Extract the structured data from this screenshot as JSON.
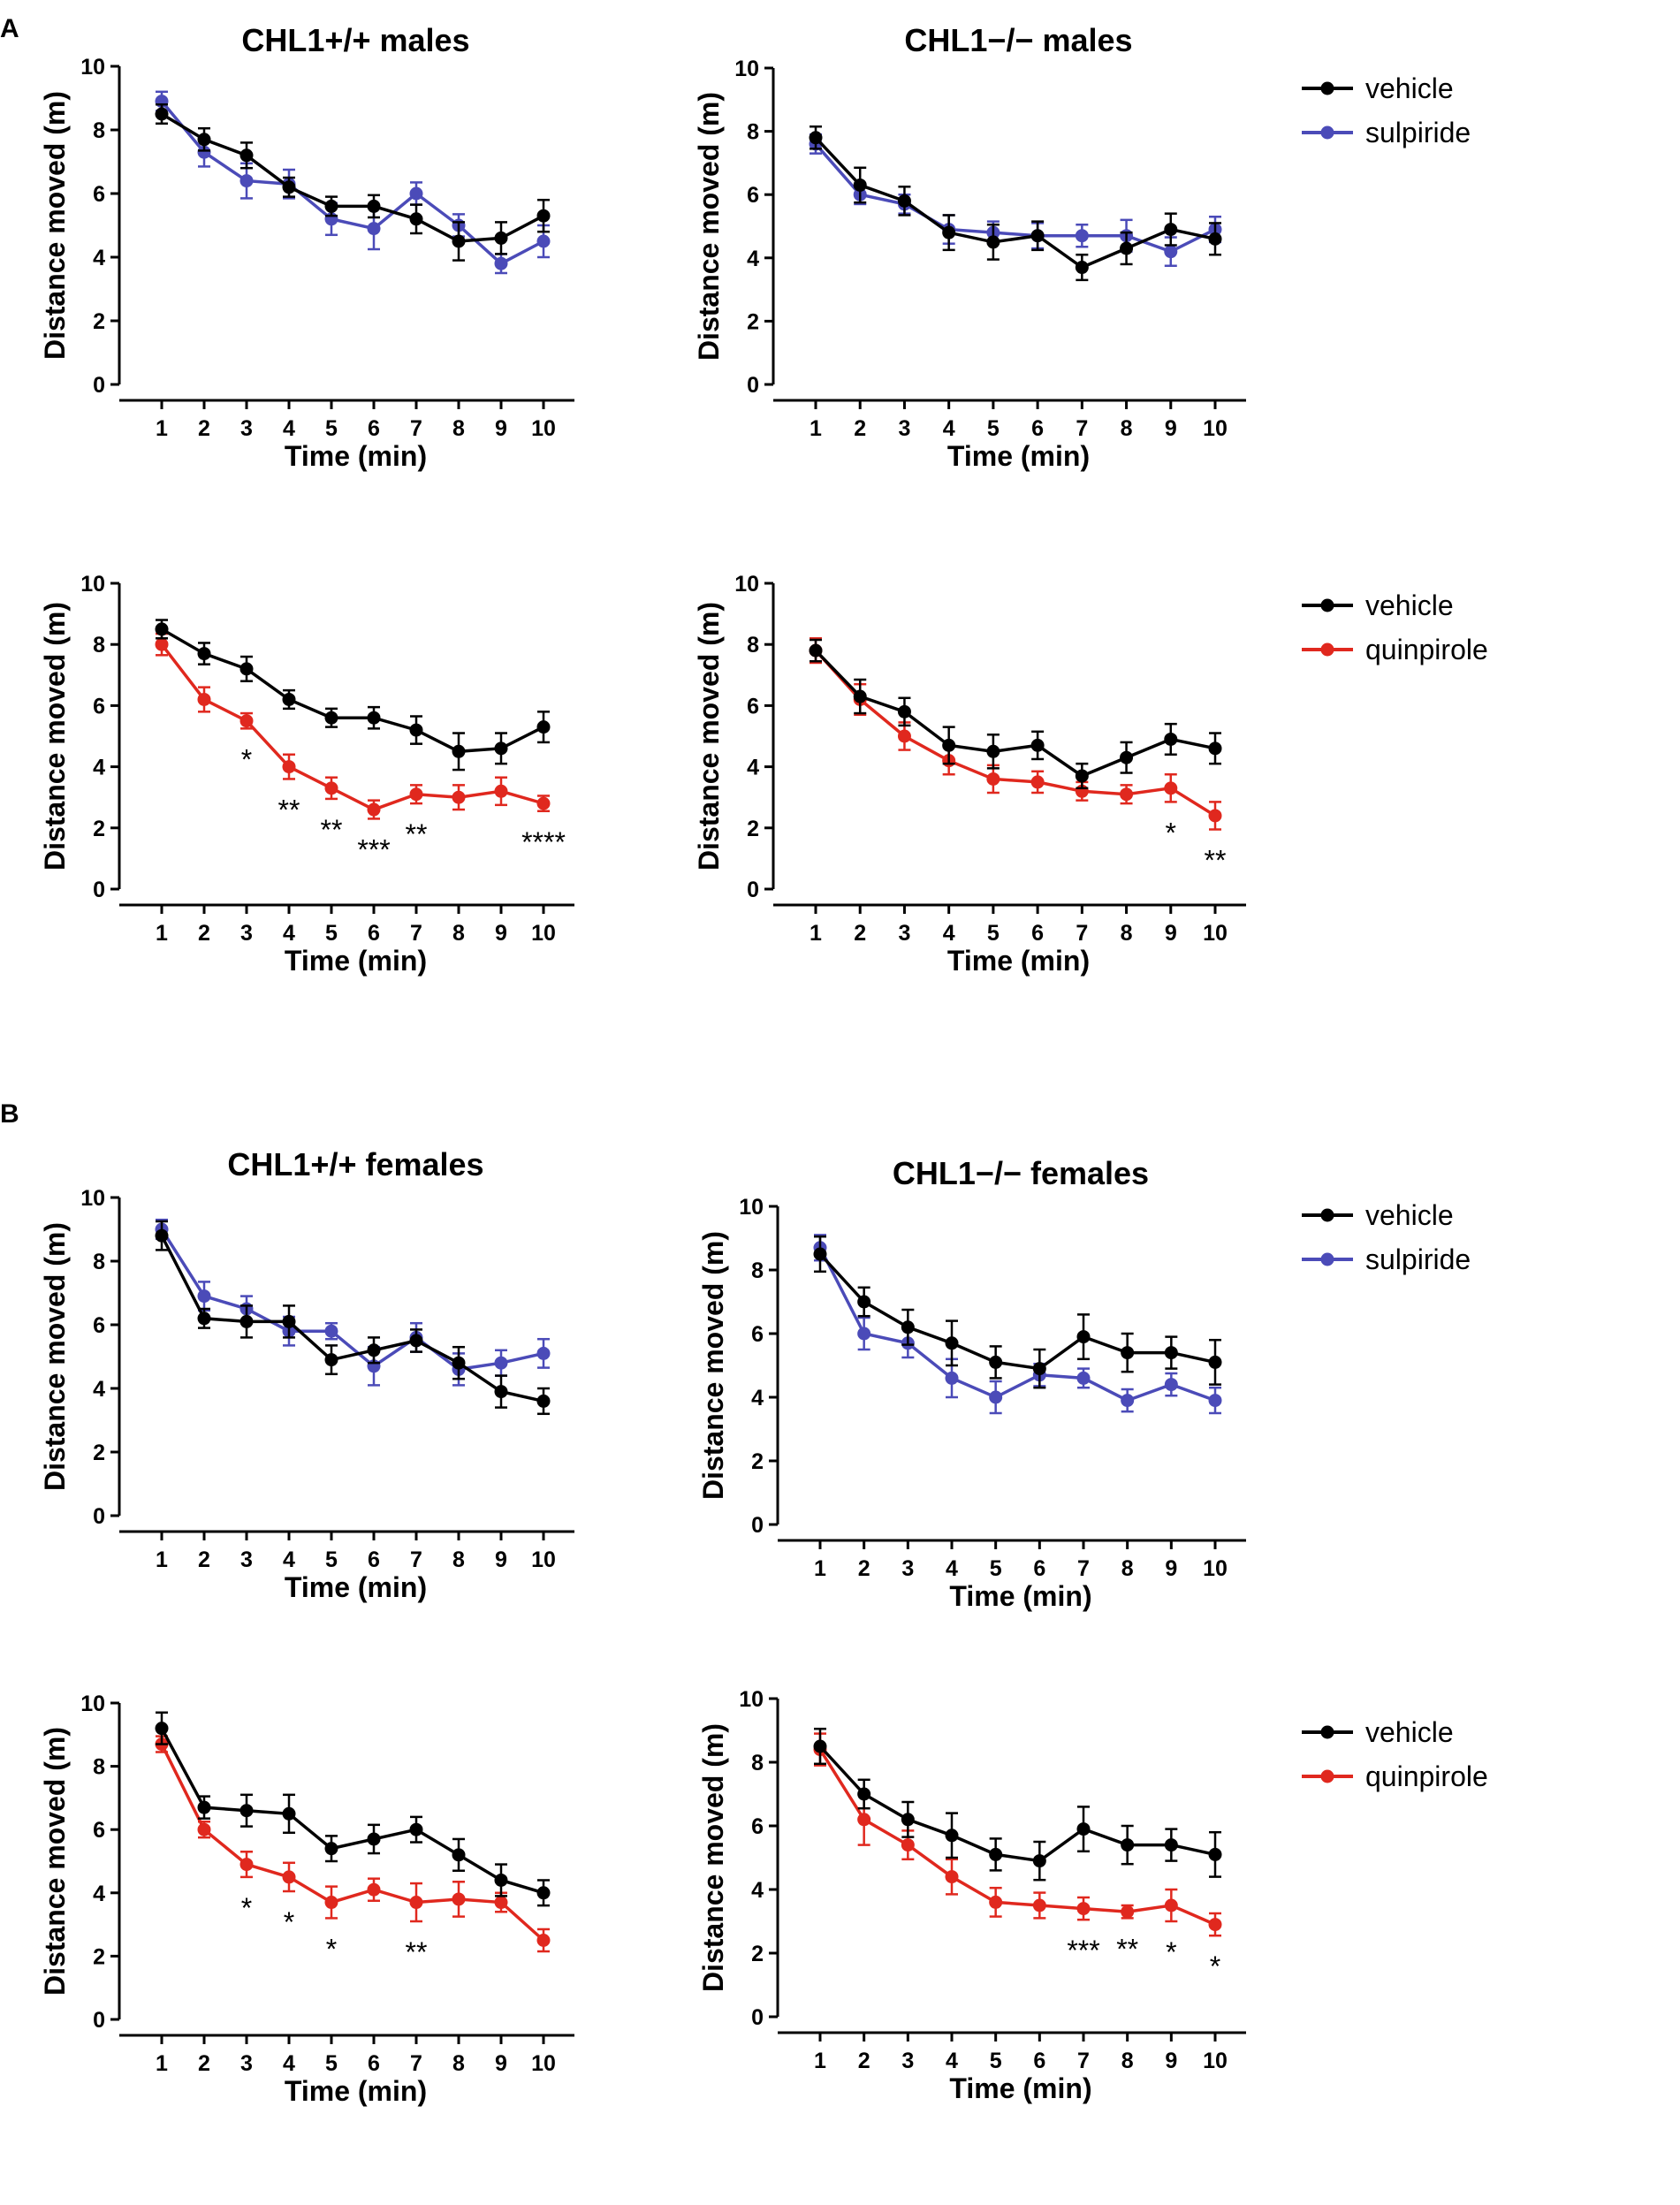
{
  "figure": {
    "panel_labels": [
      "A",
      "B"
    ]
  },
  "colors": {
    "vehicle": "#000000",
    "sulpiride": "#4B4BB8",
    "quinpirole": "#E0281E"
  },
  "chart_data": [
    {
      "id": "males-wt-sulpiride",
      "type": "line",
      "panel": "A",
      "title": "CHL1+/+ males",
      "xlabel": "Time (min)",
      "ylabel": "Distance moved  (m)",
      "categories": [
        1,
        2,
        3,
        4,
        5,
        6,
        7,
        8,
        9,
        10
      ],
      "ylim": [
        0,
        10
      ],
      "yticks": [
        0,
        2,
        4,
        6,
        8,
        10
      ],
      "series": [
        {
          "name": "vehicle",
          "color": "#000000",
          "values": [
            8.5,
            7.7,
            7.2,
            6.2,
            5.6,
            5.6,
            5.2,
            4.5,
            4.6,
            5.3
          ],
          "err": [
            0.3,
            0.35,
            0.4,
            0.3,
            0.3,
            0.35,
            0.45,
            0.6,
            0.5,
            0.5
          ]
        },
        {
          "name": "sulpiride",
          "color": "#4B4BB8",
          "values": [
            8.9,
            7.3,
            6.4,
            6.3,
            5.2,
            4.9,
            6.0,
            5.0,
            3.8,
            4.5
          ],
          "err": [
            0.3,
            0.45,
            0.55,
            0.45,
            0.5,
            0.65,
            0.35,
            0.35,
            0.3,
            0.5
          ]
        }
      ],
      "annotations": []
    },
    {
      "id": "males-ko-sulpiride",
      "type": "line",
      "panel": "A",
      "title": "CHL1−/− males",
      "xlabel": "Time (min)",
      "ylabel": "Distance moved  (m)",
      "categories": [
        1,
        2,
        3,
        4,
        5,
        6,
        7,
        8,
        9,
        10
      ],
      "ylim": [
        0,
        10
      ],
      "yticks": [
        0,
        2,
        4,
        6,
        8,
        10
      ],
      "legend": [
        "vehicle",
        "sulpiride"
      ],
      "series": [
        {
          "name": "vehicle",
          "color": "#000000",
          "values": [
            7.8,
            6.3,
            5.8,
            4.8,
            4.5,
            4.7,
            3.7,
            4.3,
            4.9,
            4.6
          ],
          "err": [
            0.35,
            0.55,
            0.45,
            0.55,
            0.55,
            0.45,
            0.4,
            0.5,
            0.5,
            0.5
          ]
        },
        {
          "name": "sulpiride",
          "color": "#4B4BB8",
          "values": [
            7.6,
            6.0,
            5.7,
            4.9,
            4.8,
            4.7,
            4.7,
            4.7,
            4.2,
            4.9
          ],
          "err": [
            0.3,
            0.3,
            0.3,
            0.45,
            0.35,
            0.4,
            0.35,
            0.5,
            0.45,
            0.4
          ]
        }
      ],
      "annotations": []
    },
    {
      "id": "males-wt-quinpirole",
      "type": "line",
      "panel": "A",
      "title": "",
      "xlabel": "Time (min)",
      "ylabel": "Distance moved  (m)",
      "categories": [
        1,
        2,
        3,
        4,
        5,
        6,
        7,
        8,
        9,
        10
      ],
      "ylim": [
        0,
        10
      ],
      "yticks": [
        0,
        2,
        4,
        6,
        8,
        10
      ],
      "series": [
        {
          "name": "vehicle",
          "color": "#000000",
          "values": [
            8.5,
            7.7,
            7.2,
            6.2,
            5.6,
            5.6,
            5.2,
            4.5,
            4.6,
            5.3
          ],
          "err": [
            0.3,
            0.35,
            0.4,
            0.3,
            0.3,
            0.35,
            0.45,
            0.6,
            0.5,
            0.5
          ]
        },
        {
          "name": "quinpirole",
          "color": "#E0281E",
          "values": [
            8.0,
            6.2,
            5.5,
            4.0,
            3.3,
            2.6,
            3.1,
            3.0,
            3.2,
            2.8
          ],
          "err": [
            0.35,
            0.4,
            0.25,
            0.4,
            0.35,
            0.3,
            0.3,
            0.4,
            0.45,
            0.25
          ]
        }
      ],
      "annotations": [
        {
          "x": 3,
          "text": "*"
        },
        {
          "x": 4,
          "text": "**"
        },
        {
          "x": 5,
          "text": "**"
        },
        {
          "x": 6,
          "text": "***"
        },
        {
          "x": 7,
          "text": "**"
        },
        {
          "x": 10,
          "text": "****"
        }
      ]
    },
    {
      "id": "males-ko-quinpirole",
      "type": "line",
      "panel": "A",
      "title": "",
      "xlabel": "Time (min)",
      "ylabel": "Distance moved  (m)",
      "categories": [
        1,
        2,
        3,
        4,
        5,
        6,
        7,
        8,
        9,
        10
      ],
      "ylim": [
        0,
        10
      ],
      "yticks": [
        0,
        2,
        4,
        6,
        8,
        10
      ],
      "legend": [
        "vehicle",
        "quinpirole"
      ],
      "series": [
        {
          "name": "vehicle",
          "color": "#000000",
          "values": [
            7.8,
            6.3,
            5.8,
            4.7,
            4.5,
            4.7,
            3.7,
            4.3,
            4.9,
            4.6
          ],
          "err": [
            0.35,
            0.55,
            0.45,
            0.6,
            0.55,
            0.45,
            0.4,
            0.5,
            0.5,
            0.5
          ]
        },
        {
          "name": "quinpirole",
          "color": "#E0281E",
          "values": [
            7.8,
            6.2,
            5.0,
            4.2,
            3.6,
            3.5,
            3.2,
            3.1,
            3.3,
            2.4
          ],
          "err": [
            0.4,
            0.5,
            0.45,
            0.45,
            0.45,
            0.35,
            0.3,
            0.3,
            0.45,
            0.45
          ]
        }
      ],
      "annotations": [
        {
          "x": 9,
          "text": "*"
        },
        {
          "x": 10,
          "text": "**"
        }
      ]
    },
    {
      "id": "females-wt-sulpiride",
      "type": "line",
      "panel": "B",
      "title": "CHL1+/+ females",
      "xlabel": "Time (min)",
      "ylabel": "Distance moved  (m)",
      "categories": [
        1,
        2,
        3,
        4,
        5,
        6,
        7,
        8,
        9,
        10
      ],
      "ylim": [
        0,
        10
      ],
      "yticks": [
        0,
        2,
        4,
        6,
        8,
        10
      ],
      "series": [
        {
          "name": "vehicle",
          "color": "#000000",
          "values": [
            8.8,
            6.2,
            6.1,
            6.1,
            4.9,
            5.2,
            5.5,
            4.8,
            3.9,
            3.6
          ],
          "err": [
            0.45,
            0.3,
            0.5,
            0.5,
            0.45,
            0.4,
            0.35,
            0.5,
            0.5,
            0.4
          ]
        },
        {
          "name": "sulpiride",
          "color": "#4B4BB8",
          "values": [
            9.0,
            6.9,
            6.5,
            5.8,
            5.8,
            4.7,
            5.6,
            4.6,
            4.8,
            5.1
          ],
          "err": [
            0.3,
            0.45,
            0.4,
            0.45,
            0.25,
            0.6,
            0.45,
            0.5,
            0.4,
            0.45
          ]
        }
      ],
      "annotations": []
    },
    {
      "id": "females-ko-sulpiride",
      "type": "line",
      "panel": "B",
      "title": "CHL1−/− females",
      "xlabel": "Time (min)",
      "ylabel": "Distance moved  (m)",
      "categories": [
        1,
        2,
        3,
        4,
        5,
        6,
        7,
        8,
        9,
        10
      ],
      "ylim": [
        0,
        10
      ],
      "yticks": [
        0,
        2,
        4,
        6,
        8,
        10
      ],
      "legend": [
        "vehicle",
        "sulpiride"
      ],
      "series": [
        {
          "name": "vehicle",
          "color": "#000000",
          "values": [
            8.5,
            7.0,
            6.2,
            5.7,
            5.1,
            4.9,
            5.9,
            5.4,
            5.4,
            5.1
          ],
          "err": [
            0.55,
            0.45,
            0.55,
            0.7,
            0.5,
            0.6,
            0.7,
            0.6,
            0.5,
            0.7
          ]
        },
        {
          "name": "sulpiride",
          "color": "#4B4BB8",
          "values": [
            8.7,
            6.0,
            5.7,
            4.6,
            4.0,
            4.7,
            4.6,
            3.9,
            4.4,
            3.9
          ],
          "err": [
            0.4,
            0.5,
            0.45,
            0.6,
            0.5,
            0.35,
            0.3,
            0.35,
            0.35,
            0.4
          ]
        }
      ],
      "annotations": []
    },
    {
      "id": "females-wt-quinpirole",
      "type": "line",
      "panel": "B",
      "title": "",
      "xlabel": "Time (min)",
      "ylabel": "Distance moved  (m)",
      "categories": [
        1,
        2,
        3,
        4,
        5,
        6,
        7,
        8,
        9,
        10
      ],
      "ylim": [
        0,
        10
      ],
      "yticks": [
        0,
        2,
        4,
        6,
        8,
        10
      ],
      "series": [
        {
          "name": "vehicle",
          "color": "#000000",
          "values": [
            9.2,
            6.7,
            6.6,
            6.5,
            5.4,
            5.7,
            6.0,
            5.2,
            4.4,
            4.0
          ],
          "err": [
            0.5,
            0.35,
            0.5,
            0.6,
            0.4,
            0.45,
            0.4,
            0.5,
            0.5,
            0.4
          ]
        },
        {
          "name": "quinpirole",
          "color": "#E0281E",
          "values": [
            8.7,
            6.0,
            4.9,
            4.5,
            3.7,
            4.1,
            3.7,
            3.8,
            3.7,
            2.5
          ],
          "err": [
            0.25,
            0.25,
            0.4,
            0.45,
            0.5,
            0.35,
            0.6,
            0.55,
            0.3,
            0.35
          ]
        }
      ],
      "annotations": [
        {
          "x": 3,
          "text": "*"
        },
        {
          "x": 4,
          "text": "*"
        },
        {
          "x": 5,
          "text": "*"
        },
        {
          "x": 7,
          "text": "**"
        }
      ]
    },
    {
      "id": "females-ko-quinpirole",
      "type": "line",
      "panel": "B",
      "title": "",
      "xlabel": "Time (min)",
      "ylabel": "Distance moved  (m)",
      "categories": [
        1,
        2,
        3,
        4,
        5,
        6,
        7,
        8,
        9,
        10
      ],
      "ylim": [
        0,
        10
      ],
      "yticks": [
        0,
        2,
        4,
        6,
        8,
        10
      ],
      "legend": [
        "vehicle",
        "quinpirole"
      ],
      "series": [
        {
          "name": "vehicle",
          "color": "#000000",
          "values": [
            8.5,
            7.0,
            6.2,
            5.7,
            5.1,
            4.9,
            5.9,
            5.4,
            5.4,
            5.1
          ],
          "err": [
            0.55,
            0.45,
            0.55,
            0.7,
            0.5,
            0.6,
            0.7,
            0.6,
            0.5,
            0.7
          ]
        },
        {
          "name": "quinpirole",
          "color": "#E0281E",
          "values": [
            8.4,
            6.2,
            5.4,
            4.4,
            3.6,
            3.5,
            3.4,
            3.3,
            3.5,
            2.9
          ],
          "err": [
            0.5,
            0.8,
            0.45,
            0.55,
            0.45,
            0.4,
            0.35,
            0.2,
            0.5,
            0.35
          ]
        }
      ],
      "annotations": [
        {
          "x": 7,
          "text": "***"
        },
        {
          "x": 8,
          "text": "**"
        },
        {
          "x": 9,
          "text": "*"
        },
        {
          "x": 10,
          "text": "*"
        }
      ]
    }
  ]
}
